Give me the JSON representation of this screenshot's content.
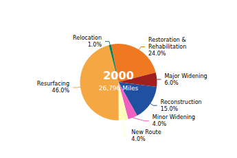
{
  "chart_data": {
    "type": "pie",
    "title": "2000",
    "subtitle": "26,796 Miles",
    "categories": [
      "Restoration & Rehabilitation",
      "Major Widening",
      "Reconstruction",
      "Minor Widening",
      "New Route",
      "Resurfacing",
      "Relocation"
    ],
    "values": [
      24.0,
      6.0,
      15.0,
      4.0,
      4.0,
      46.0,
      1.0
    ],
    "value_labels": [
      "24.0%",
      "6.0%",
      "15.0%",
      "4.0%",
      "4.0%",
      "46.0%",
      "1.0%"
    ],
    "colors": [
      "#F07820",
      "#A02020",
      "#2050A0",
      "#F060C0",
      "#FFFFC0",
      "#F5A842",
      "#008060"
    ],
    "data_labels": true,
    "legend": false
  }
}
